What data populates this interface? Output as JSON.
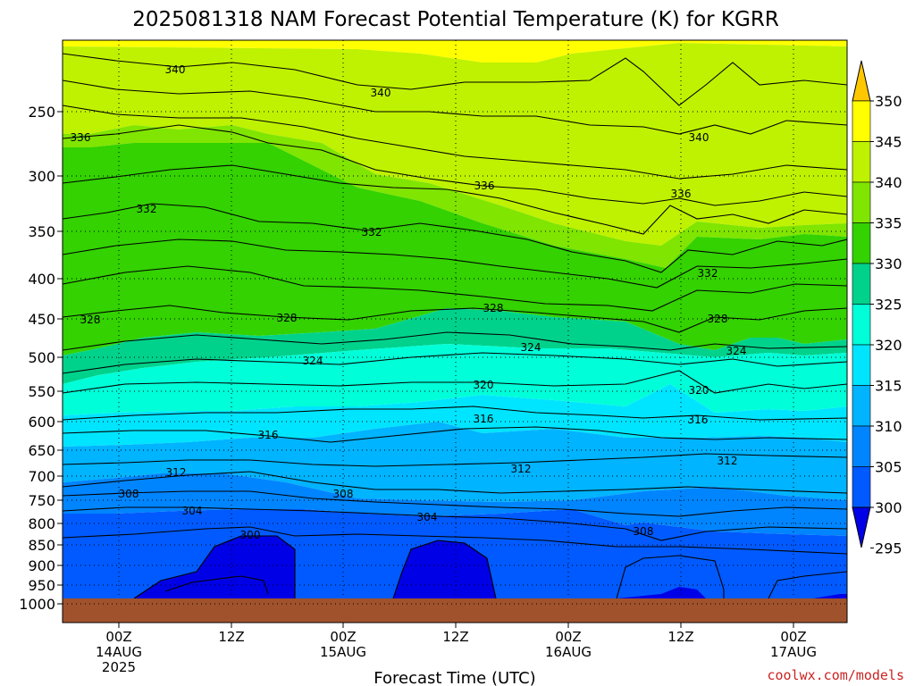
{
  "chart_data": {
    "type": "heatmap",
    "title": "2025081318 NAM Forecast Potential Temperature (K) for KGRR",
    "xlabel": "Forecast Time (UTC)",
    "ylabel": "",
    "credit": "coolwx.com/models",
    "x_ticks": [
      {
        "line1": "00Z",
        "line2": "14AUG",
        "line3": "2025"
      },
      {
        "line1": "12Z",
        "line2": "",
        "line3": ""
      },
      {
        "line1": "00Z",
        "line2": "15AUG",
        "line3": ""
      },
      {
        "line1": "12Z",
        "line2": "",
        "line3": ""
      },
      {
        "line1": "00Z",
        "line2": "16AUG",
        "line3": ""
      },
      {
        "line1": "12Z",
        "line2": "",
        "line3": ""
      },
      {
        "line1": "00Z",
        "line2": "17AUG",
        "line3": ""
      }
    ],
    "pressure_levels": [
      "250",
      "300",
      "350",
      "400",
      "450",
      "500",
      "550",
      "600",
      "650",
      "700",
      "750",
      "800",
      "850",
      "900",
      "950",
      "1000"
    ],
    "colorbar_labels": [
      "350",
      "345",
      "340",
      "335",
      "330",
      "325",
      "320",
      "315",
      "310",
      "305",
      "300",
      "295"
    ],
    "colorbar_colors": [
      "#ffc700",
      "#ffff00",
      "#bff200",
      "#80e500",
      "#33d200",
      "#00d28c",
      "#00ffd8",
      "#00e5ff",
      "#00b4ff",
      "#0085ff",
      "#005aff",
      "#0000e6"
    ],
    "ground_color": "#a0522d",
    "contour_labels": [
      "340",
      "340",
      "336",
      "340",
      "336",
      "332",
      "332",
      "336",
      "332",
      "328",
      "328",
      "328",
      "328",
      "324",
      "324",
      "324",
      "320",
      "320",
      "316",
      "316",
      "316",
      "312",
      "312",
      "312",
      "308",
      "308",
      "304",
      "304",
      "308",
      "300"
    ]
  }
}
